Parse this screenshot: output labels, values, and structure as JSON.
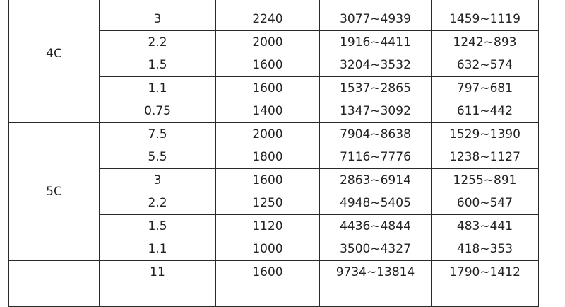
{
  "table": {
    "groups": [
      {
        "label": "4C",
        "rows": [
          [
            "",
            "",
            "",
            ""
          ],
          [
            "3",
            "2240",
            "3077~4939",
            "1459~1119"
          ],
          [
            "2.2",
            "2000",
            "1916~4411",
            "1242~893"
          ],
          [
            "1.5",
            "1600",
            "3204~3532",
            "632~574"
          ],
          [
            "1.1",
            "1600",
            "1537~2865",
            "797~681"
          ],
          [
            "0.75",
            "1400",
            "1347~3092",
            "611~442"
          ]
        ]
      },
      {
        "label": "5C",
        "rows": [
          [
            "7.5",
            "2000",
            "7904~8638",
            "1529~1390"
          ],
          [
            "5.5",
            "1800",
            "7116~7776",
            "1238~1127"
          ],
          [
            "3",
            "1600",
            "2863~6914",
            "1255~891"
          ],
          [
            "2.2",
            "1250",
            "4948~5405",
            "600~547"
          ],
          [
            "1.5",
            "1120",
            "4436~4844",
            "483~441"
          ],
          [
            "1.1",
            "1000",
            "3500~4327",
            "418~353"
          ]
        ]
      },
      {
        "label": "",
        "rows": [
          [
            "11",
            "1600",
            "9734~13814",
            "1790~1412"
          ],
          [
            "",
            "",
            "",
            ""
          ]
        ]
      }
    ]
  }
}
